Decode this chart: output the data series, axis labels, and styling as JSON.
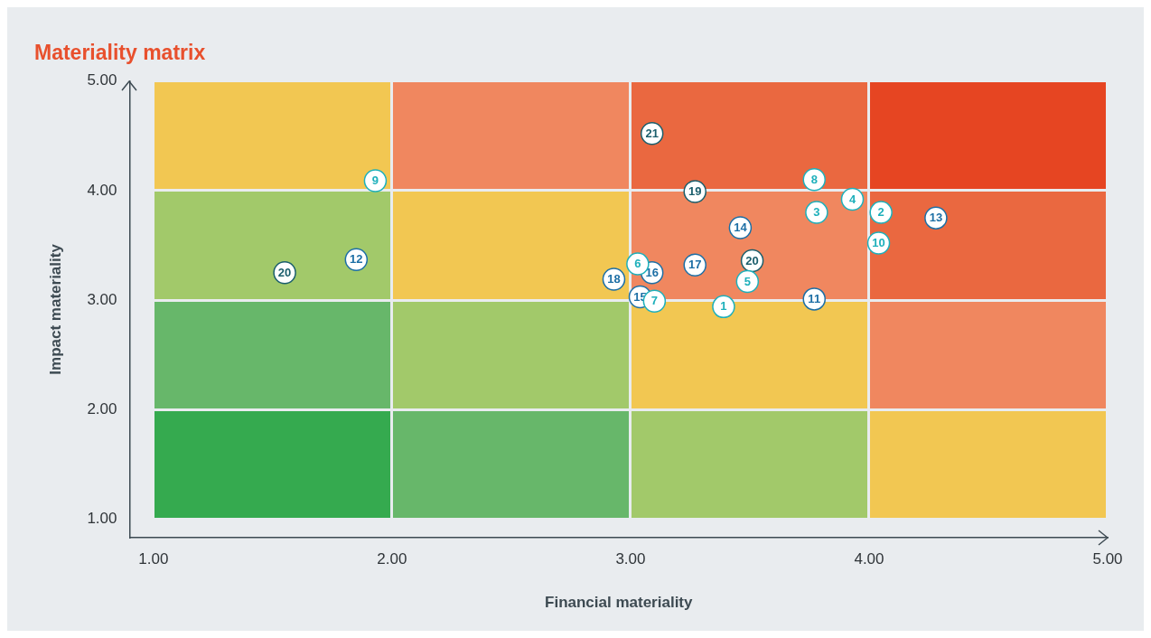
{
  "chart_data": {
    "type": "scatter",
    "title": "Materiality matrix",
    "xlabel": "Financial materiality",
    "ylabel": "Impact materiality",
    "xlim": [
      0.9,
      5.0
    ],
    "ylim": [
      0.83,
      5.0
    ],
    "xticks": [
      {
        "value": 1,
        "label": "1.00"
      },
      {
        "value": 2,
        "label": "2.00"
      },
      {
        "value": 3,
        "label": "3.00"
      },
      {
        "value": 4,
        "label": "4.00"
      },
      {
        "value": 5,
        "label": "5.00"
      }
    ],
    "yticks": [
      {
        "value": 1,
        "label": "1.00"
      },
      {
        "value": 2,
        "label": "2.00"
      },
      {
        "value": 3,
        "label": "3.00"
      },
      {
        "value": 4,
        "label": "4.00"
      },
      {
        "value": 5,
        "label": "5.00"
      }
    ],
    "grid": false,
    "legend": false,
    "marker": "circle",
    "series": [
      {
        "color": "#1eb0bb",
        "x": [
          3.39,
          4.05,
          3.78,
          3.93,
          3.49,
          3.03,
          3.1,
          3.77,
          1.93,
          4.04
        ],
        "values": [
          2.94,
          3.8,
          3.8,
          3.92,
          3.17,
          3.33,
          2.99,
          4.1,
          4.09,
          3.52
        ]
      },
      {
        "color": "#1d6fa5",
        "x": [
          3.77,
          1.85,
          4.28,
          3.46,
          3.04,
          3.09,
          3.27,
          2.93
        ],
        "values": [
          3.01,
          3.37,
          3.75,
          3.66,
          3.03,
          3.25,
          3.32,
          3.19
        ]
      },
      {
        "color": "#1b5e6c",
        "x": [
          3.27,
          3.51,
          1.55,
          3.09
        ],
        "values": [
          3.99,
          3.36,
          3.25,
          4.52
        ]
      }
    ],
    "annotations": [
      {
        "text": "1",
        "x": 3.39,
        "y": 2.94
      },
      {
        "text": "2",
        "x": 4.05,
        "y": 3.8
      },
      {
        "text": "3",
        "x": 3.78,
        "y": 3.8
      },
      {
        "text": "4",
        "x": 3.93,
        "y": 3.92
      },
      {
        "text": "5",
        "x": 3.49,
        "y": 3.17
      },
      {
        "text": "6",
        "x": 3.03,
        "y": 3.33
      },
      {
        "text": "7",
        "x": 3.1,
        "y": 2.99
      },
      {
        "text": "8",
        "x": 3.77,
        "y": 4.1
      },
      {
        "text": "9",
        "x": 1.93,
        "y": 4.09
      },
      {
        "text": "10",
        "x": 4.04,
        "y": 3.52
      },
      {
        "text": "11",
        "x": 3.77,
        "y": 3.01
      },
      {
        "text": "12",
        "x": 1.85,
        "y": 3.37
      },
      {
        "text": "13",
        "x": 4.28,
        "y": 3.75
      },
      {
        "text": "14",
        "x": 3.46,
        "y": 3.66
      },
      {
        "text": "15",
        "x": 3.04,
        "y": 3.03
      },
      {
        "text": "16",
        "x": 3.09,
        "y": 3.25
      },
      {
        "text": "17",
        "x": 3.27,
        "y": 3.32
      },
      {
        "text": "18",
        "x": 2.93,
        "y": 3.19
      },
      {
        "text": "19",
        "x": 3.27,
        "y": 3.99
      },
      {
        "text": "20",
        "x": 3.51,
        "y": 3.36
      },
      {
        "text": "20",
        "x": 1.55,
        "y": 3.25
      },
      {
        "text": "21",
        "x": 3.09,
        "y": 4.52
      }
    ]
  }
}
